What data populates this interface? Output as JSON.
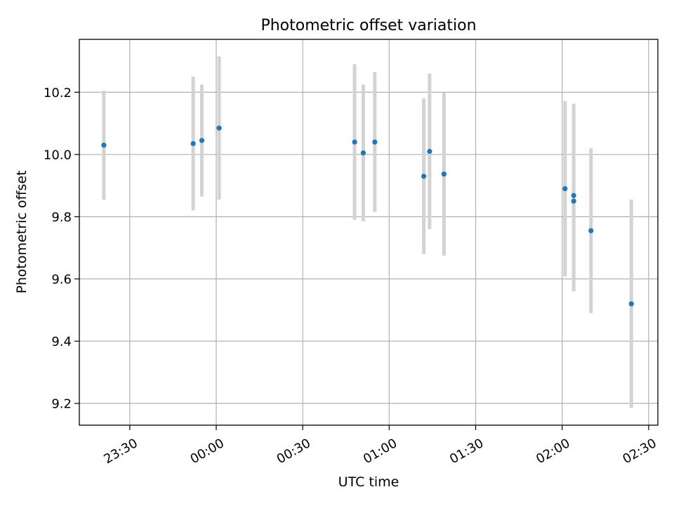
{
  "chart_data": {
    "type": "scatter",
    "title": "Photometric offset variation",
    "xlabel": "UTC time",
    "ylabel": "Photometric offset",
    "xlim_minutes_from_2330": [
      -17.5,
      183.2
    ],
    "ylim": [
      9.13,
      10.37
    ],
    "x_ticks": [
      {
        "label": "23:30",
        "minute": 0
      },
      {
        "label": "00:00",
        "minute": 30
      },
      {
        "label": "00:30",
        "minute": 60
      },
      {
        "label": "01:00",
        "minute": 90
      },
      {
        "label": "01:30",
        "minute": 120
      },
      {
        "label": "02:00",
        "minute": 150
      },
      {
        "label": "02:30",
        "minute": 180
      }
    ],
    "y_ticks": [
      {
        "label": "9.2",
        "value": 9.2
      },
      {
        "label": "9.4",
        "value": 9.4
      },
      {
        "label": "9.6",
        "value": 9.6
      },
      {
        "label": "9.8",
        "value": 9.8
      },
      {
        "label": "10.0",
        "value": 10.0
      },
      {
        "label": "10.2",
        "value": 10.2
      }
    ],
    "grid": true,
    "series": [
      {
        "marker_color": "#1f77b4",
        "errorbar_color": "#d3d3d3",
        "points": [
          {
            "time": "23:21",
            "y": 10.03,
            "err": 0.175
          },
          {
            "time": "23:52",
            "y": 10.035,
            "err": 0.215
          },
          {
            "time": "23:55",
            "y": 10.045,
            "err": 0.18
          },
          {
            "time": "00:01",
            "y": 10.085,
            "err": 0.23
          },
          {
            "time": "00:48",
            "y": 10.04,
            "err": 0.25
          },
          {
            "time": "00:51",
            "y": 10.005,
            "err": 0.22
          },
          {
            "time": "00:55",
            "y": 10.04,
            "err": 0.225
          },
          {
            "time": "01:12",
            "y": 9.93,
            "err": 0.25
          },
          {
            "time": "01:14",
            "y": 10.01,
            "err": 0.25
          },
          {
            "time": "01:19",
            "y": 9.937,
            "err": 0.262
          },
          {
            "time": "02:01",
            "y": 9.89,
            "err": 0.282
          },
          {
            "time": "02:04",
            "y": 9.85,
            "err": 0.29
          },
          {
            "time": "02:04",
            "y": 9.868,
            "err": 0.295
          },
          {
            "time": "02:10",
            "y": 9.755,
            "err": 0.265
          },
          {
            "time": "02:24",
            "y": 9.52,
            "err": 0.335
          }
        ]
      }
    ]
  }
}
